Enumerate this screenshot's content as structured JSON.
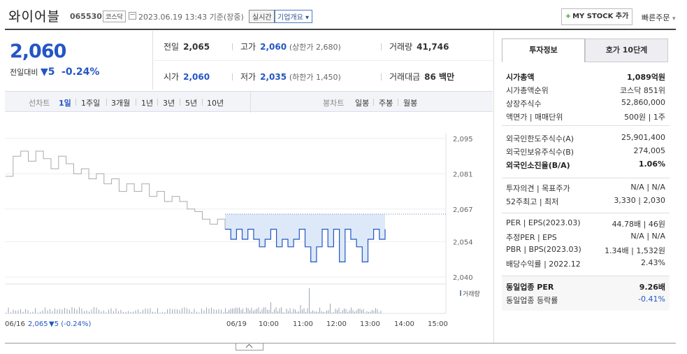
{
  "header": {
    "stock_name": "와이어블",
    "stock_code": "065530",
    "market": "코스닥",
    "datetime": "2023.06.19 13:43 기준(장중)",
    "live_label": "실시간",
    "company_info_label": "기업개요",
    "my_stock_label": "MY STOCK 추가",
    "quick_order_label": "빠른주문"
  },
  "summary": {
    "price": "2,060",
    "change_label": "전일대비",
    "change_value": "5",
    "change_pct": "-0.24%",
    "prev_close_label": "전일",
    "prev_close": "2,065",
    "high_label": "고가",
    "high": "2,060",
    "upper_limit": "(상한가 2,680)",
    "volume_label": "거래량",
    "volume": "41,746",
    "open_label": "시가",
    "open": "2,060",
    "low_label": "저가",
    "low": "2,035",
    "lower_limit": "(하한가 1,450)",
    "amount_label": "거래대금",
    "amount": "86 백만"
  },
  "chart_tabs": {
    "line_label": "선차트",
    "line_periods": [
      "1일",
      "1주일",
      "3개월",
      "1년",
      "3년",
      "5년",
      "10년"
    ],
    "selected": "1일",
    "candle_label": "봉차트",
    "candle_periods": [
      "일봉",
      "주봉",
      "월봉"
    ]
  },
  "chart_data": {
    "type": "line",
    "y_ticks": [
      "2,095",
      "2,081",
      "2,067",
      "2,054",
      "2,040"
    ],
    "ylim": [
      2040,
      2095
    ],
    "x_ticks": [
      "06/16",
      "06/19",
      "10:00",
      "11:00",
      "12:00",
      "13:00",
      "14:00",
      "15:00"
    ],
    "prev_close": 2065,
    "legend_prev": "06/16",
    "legend_prev_value": "2,065",
    "legend_prev_change": "▼5 (-0.24%)",
    "volume_label": "거래량",
    "series": [
      {
        "values": [
          2080,
          2088,
          2090,
          2086,
          2090,
          2087,
          2083,
          2088,
          2085,
          2081,
          2083,
          2079,
          2081,
          2077,
          2079,
          2074,
          2077,
          2074,
          2077,
          2072,
          2074,
          2070,
          2072,
          2070,
          2067,
          2066,
          2063,
          2061,
          2063,
          2059
        ]
      },
      {
        "values": [
          2059,
          2055,
          2059,
          2055,
          2059,
          2055,
          2052,
          2055,
          2059,
          2052,
          2055,
          2052,
          2055,
          2059,
          2052,
          2046,
          2052,
          2059,
          2052,
          2059,
          2046,
          2059,
          2055,
          2052,
          2046,
          2055,
          2059,
          2055,
          2059
        ]
      }
    ]
  },
  "right_panel": {
    "tab_active": "투자정보",
    "tab_other": "호가 10단계",
    "rows1": [
      {
        "l": "시가총액",
        "r": "1,089억원",
        "bold": true
      },
      {
        "l": "시가총액순위",
        "r": "코스닥 851위"
      },
      {
        "l": "상장주식수",
        "r": "52,860,000"
      },
      {
        "l": "액면가 | 매매단위",
        "r": "500원 | 1주"
      }
    ],
    "rows2": [
      {
        "l": "외국인한도주식수(A)",
        "r": "25,901,400"
      },
      {
        "l": "외국인보유주식수(B)",
        "r": "274,005"
      },
      {
        "l": "외국인소진율(B/A)",
        "r": "1.06%",
        "bold": true
      }
    ],
    "rows3": [
      {
        "l": "투자의견 | 목표주가",
        "r": "N/A | N/A"
      },
      {
        "l": "52주최고 | 최저",
        "r": "3,330 | 2,030"
      }
    ],
    "rows4": [
      {
        "l": "PER | EPS(2023.03)",
        "r": "44.78배 | 46원"
      },
      {
        "l": "추정PER | EPS",
        "r": "N/A | N/A"
      },
      {
        "l": "PBR | BPS(2023.03)",
        "r": "1.34배 | 1,532원"
      },
      {
        "l": "배당수익률 | 2022.12",
        "r": "2.43%"
      }
    ],
    "rows5": [
      {
        "l": "동일업종 PER",
        "r": "9.26배",
        "bold": true
      },
      {
        "l": "동일업종 등락률",
        "r": "-0.41%",
        "blue": true
      }
    ]
  },
  "colors": {
    "accent_blue": "#2456c4",
    "area_fill": "#dde9f8",
    "prev_line": "#bbbbbb"
  }
}
